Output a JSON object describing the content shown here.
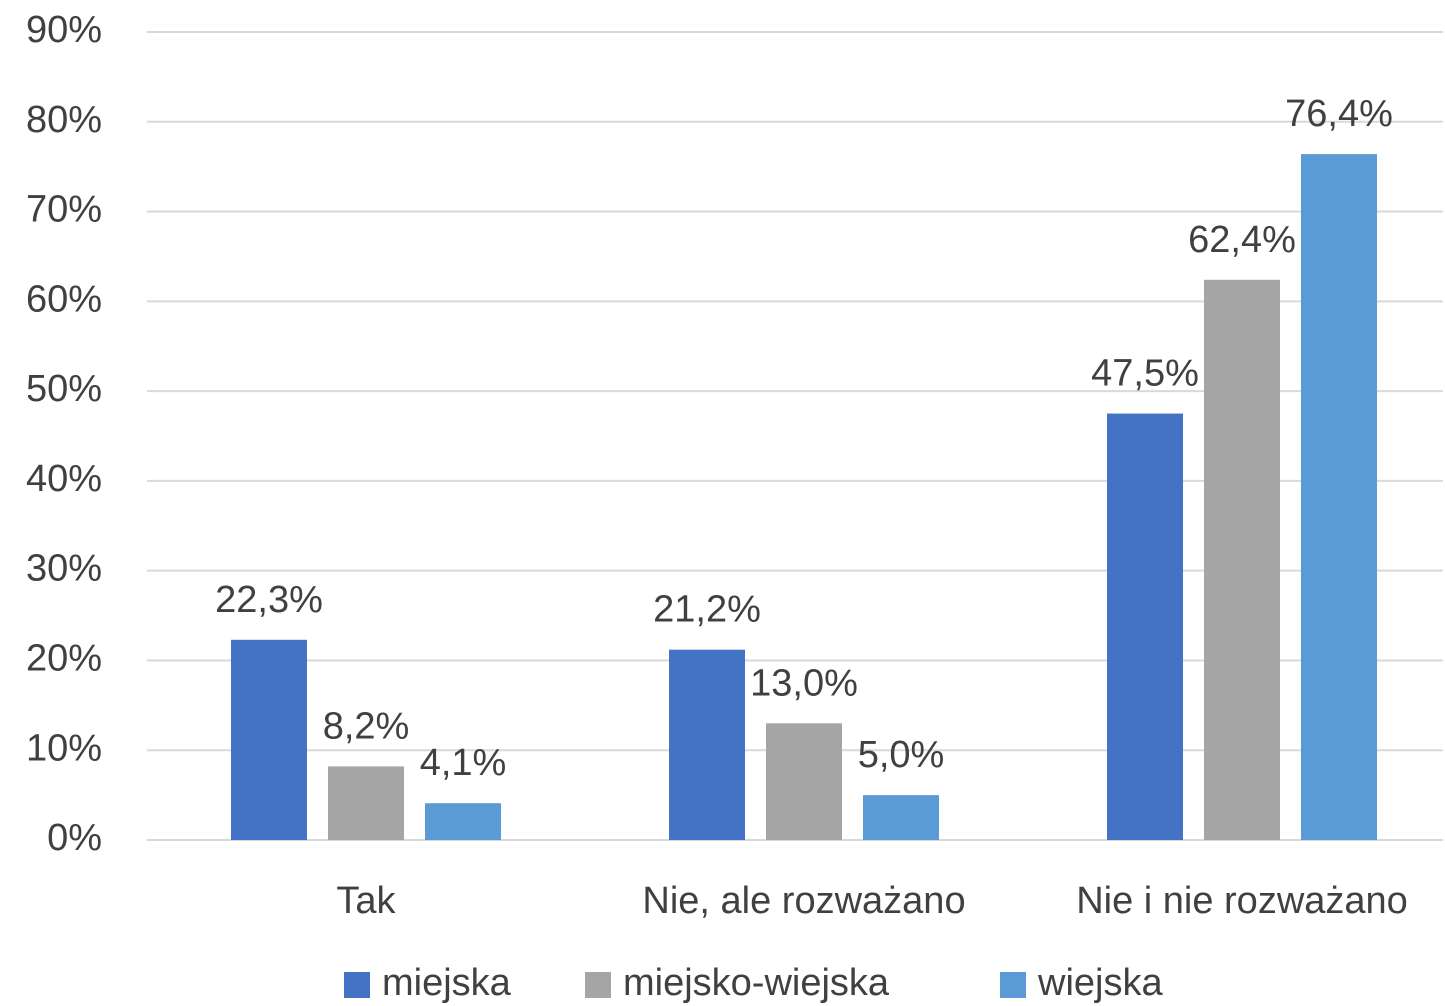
{
  "chart_data": {
    "type": "bar",
    "categories": [
      "Tak",
      "Nie, ale rozważano",
      "Nie i nie rozważano"
    ],
    "series": [
      {
        "name": "miejska",
        "color": "#4472c4",
        "values": [
          22.3,
          21.2,
          47.5
        ],
        "value_labels": [
          "22,3%",
          "21,2%",
          "47,5%"
        ]
      },
      {
        "name": "miejsko-wiejska",
        "color": "#a5a5a5",
        "values": [
          8.2,
          13.0,
          62.4
        ],
        "value_labels": [
          "8,2%",
          "13,0%",
          "62,4%"
        ]
      },
      {
        "name": "wiejska",
        "color": "#5b9bd5",
        "values": [
          4.1,
          5.0,
          76.4
        ],
        "value_labels": [
          "4,1%",
          "5,0%",
          "76,4%"
        ]
      }
    ],
    "ylim": [
      0,
      90
    ],
    "yticks": [
      {
        "value": 0,
        "label": "0%"
      },
      {
        "value": 10,
        "label": "10%"
      },
      {
        "value": 20,
        "label": "20%"
      },
      {
        "value": 30,
        "label": "30%"
      },
      {
        "value": 40,
        "label": "40%"
      },
      {
        "value": 50,
        "label": "50%"
      },
      {
        "value": 60,
        "label": "60%"
      },
      {
        "value": 70,
        "label": "70%"
      },
      {
        "value": 80,
        "label": "80%"
      },
      {
        "value": 90,
        "label": "90%"
      }
    ],
    "grid": true,
    "legend": "bottom"
  }
}
